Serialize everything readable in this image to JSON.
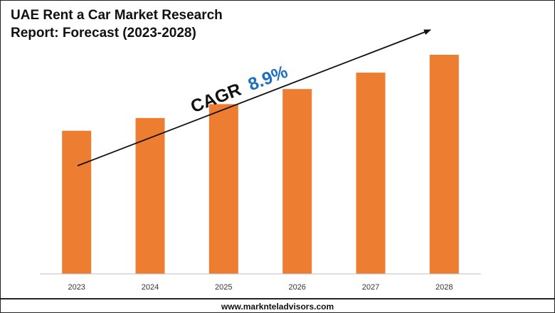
{
  "chart_data": {
    "type": "bar",
    "title_lines": [
      "UAE Rent a Car Market Research",
      "Report: Forecast (2023-2028)"
    ],
    "categories": [
      "2023",
      "2024",
      "2025",
      "2026",
      "2027",
      "2028"
    ],
    "values": [
      100,
      108.9,
      118.6,
      129.1,
      140.6,
      153.1
    ],
    "ylim": [
      0,
      166
    ],
    "xlabel": "",
    "ylabel": "",
    "grid": false,
    "annotation": {
      "label": "CAGR",
      "value": "8.9%"
    },
    "colors": {
      "bar": "#ED7D31",
      "accent": "#1F6FBF",
      "text": "#111111",
      "axis": "#BFBFBF"
    }
  },
  "footer": {
    "website": "www.marknteladvisors.com"
  }
}
